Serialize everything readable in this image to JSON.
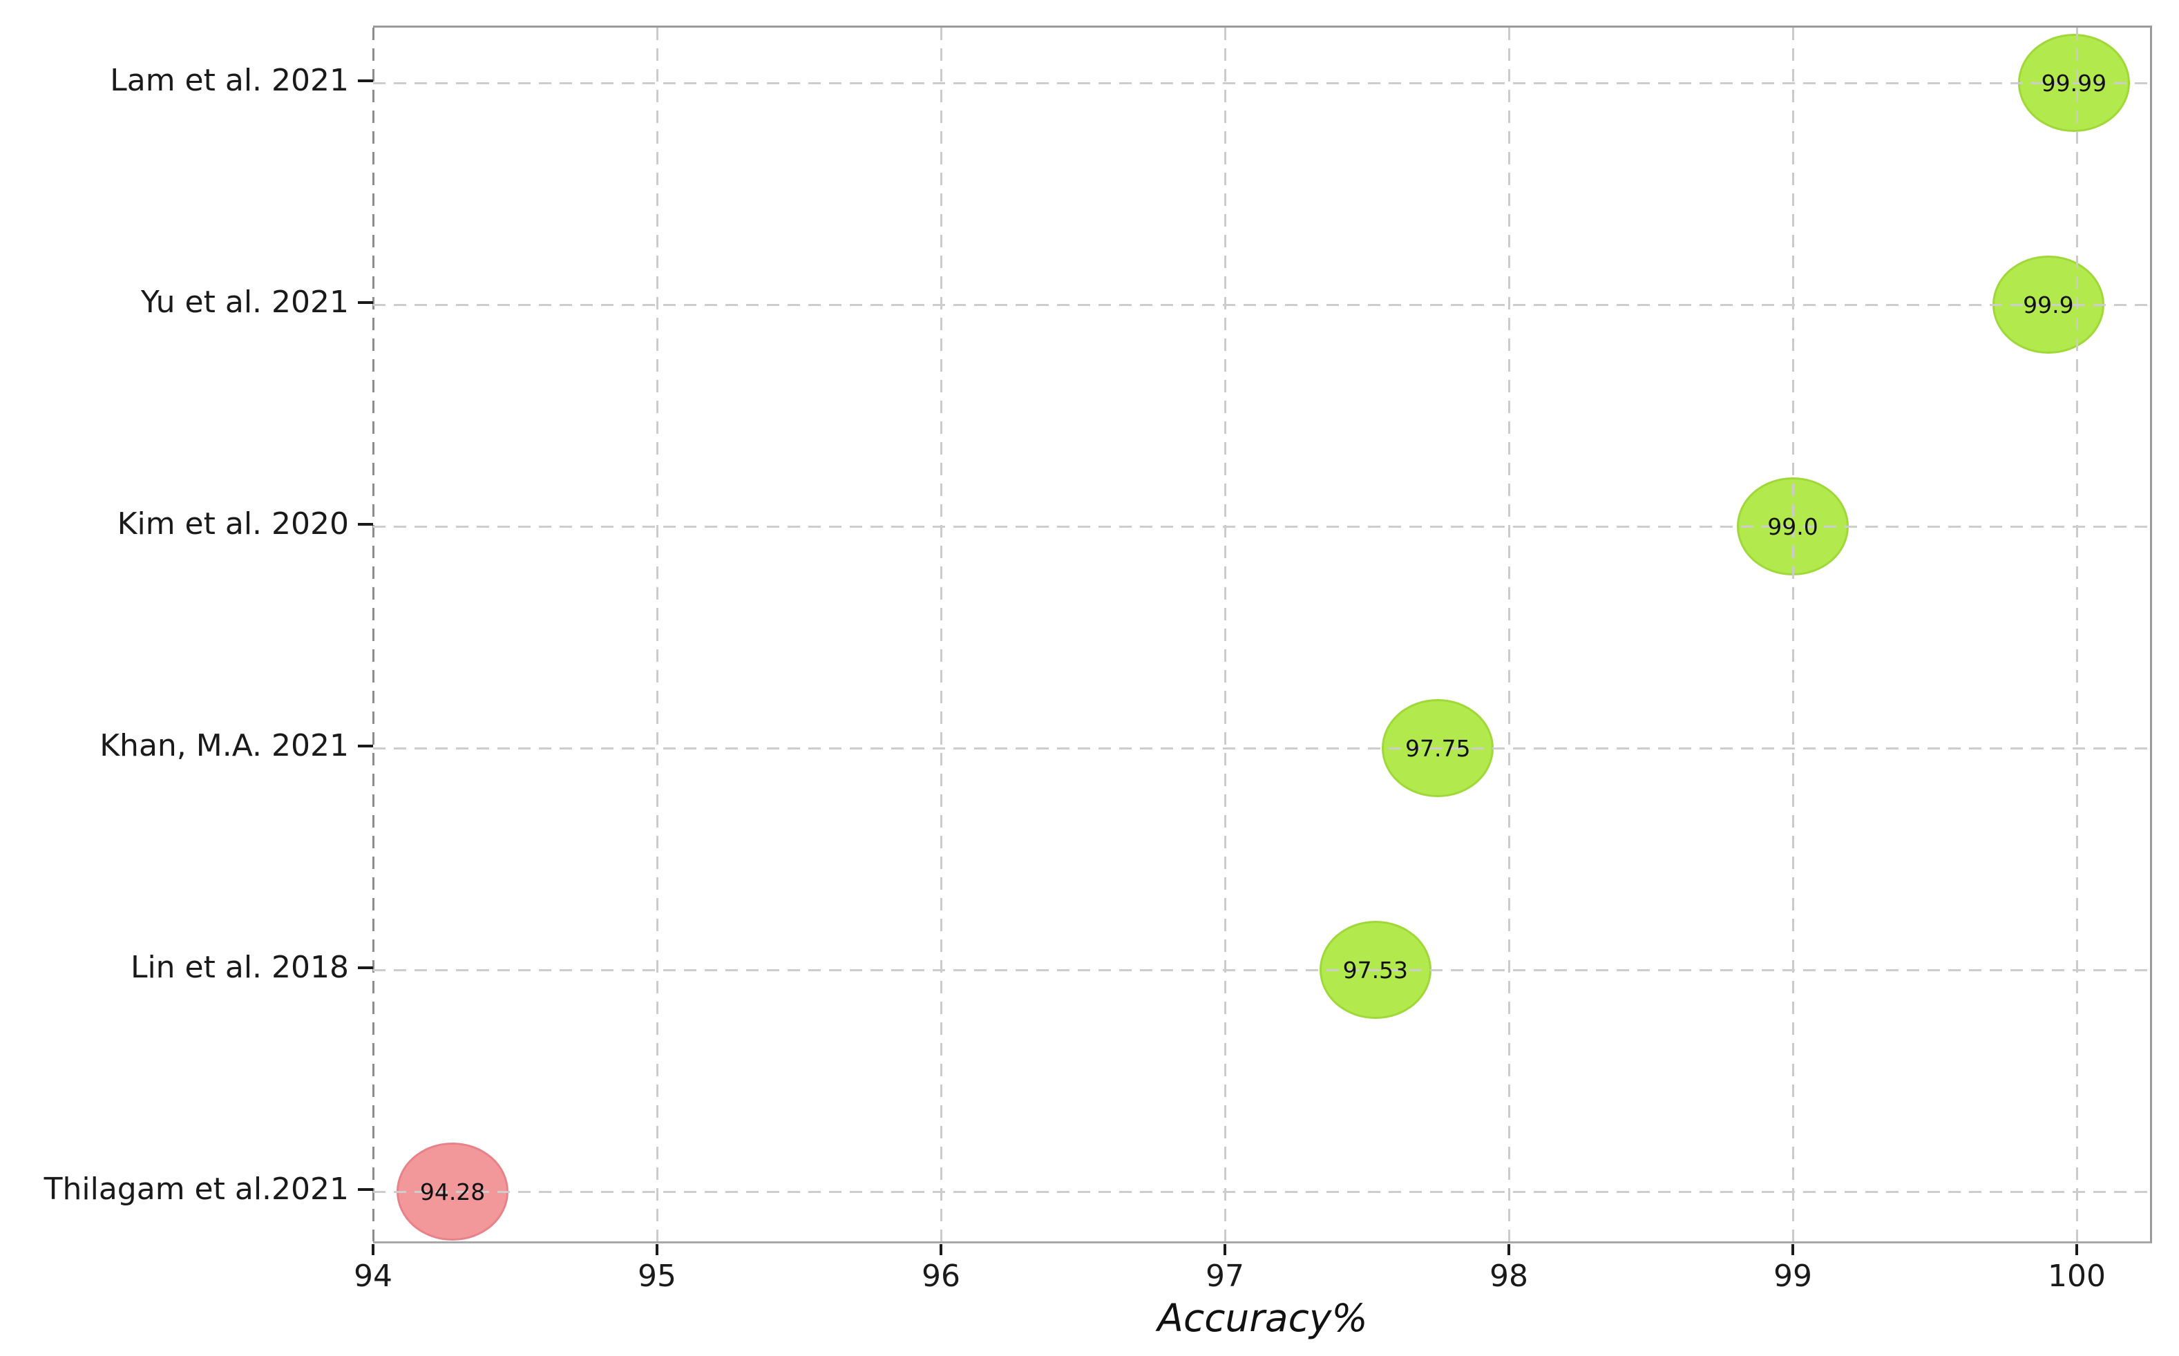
{
  "chart_data": {
    "type": "scatter",
    "variant": "bubble",
    "title": "",
    "xlabel": "Accuracy%",
    "ylabel": "",
    "xlim": [
      94,
      100.27
    ],
    "x_ticks": [
      "94",
      "95",
      "96",
      "97",
      "98",
      "99",
      "100"
    ],
    "x_tick_values": [
      94,
      95,
      96,
      97,
      98,
      99,
      100
    ],
    "grid": "dashed, drawn above markers",
    "legend_position": "none",
    "categories": [
      "Lam et al. 2021",
      "Yu et al. 2021",
      "Kim et al. 2020",
      "Khan, M.A. 2021",
      "Lin et al. 2018",
      "Thilagam et al.2021"
    ],
    "series": [
      {
        "name": "Accuracy%",
        "points": [
          {
            "category": "Lam et al. 2021",
            "x": 99.99,
            "label": "99.99",
            "color_role": "high"
          },
          {
            "category": "Yu et al. 2021",
            "x": 99.9,
            "label": "99.9",
            "color_role": "high"
          },
          {
            "category": "Kim et al. 2020",
            "x": 99.0,
            "label": "99.0",
            "color_role": "high"
          },
          {
            "category": "Khan, M.A. 2021",
            "x": 97.75,
            "label": "97.75",
            "color_role": "high"
          },
          {
            "category": "Lin et al. 2018",
            "x": 97.53,
            "label": "97.53",
            "color_role": "high"
          },
          {
            "category": "Thilagam et al.2021",
            "x": 94.28,
            "label": "94.28",
            "color_role": "low"
          }
        ]
      }
    ],
    "colors": {
      "high_fill": "#b2ea4e",
      "high_border": "#9fd838",
      "low_fill": "#f2979a",
      "low_border": "#e8828a"
    }
  }
}
